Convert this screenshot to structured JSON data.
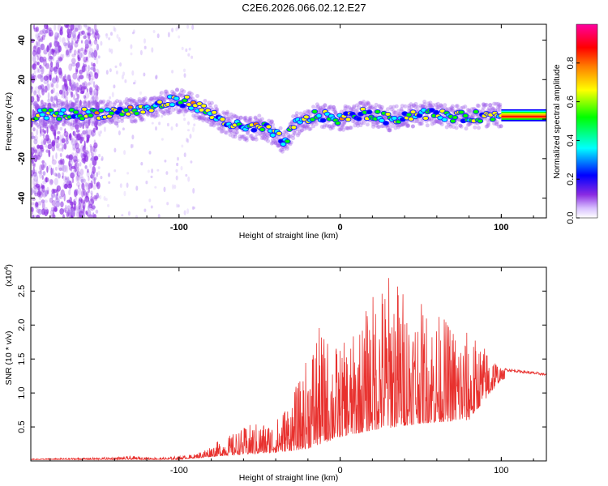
{
  "title": "C2E6.2026.066.02.12.E27",
  "chart_data": [
    {
      "type": "heatmap",
      "name": "spectrogram",
      "xlabel": "Height of straight line (km)",
      "ylabel": "Frequency (Hz)",
      "xlim": [
        -192,
        128
      ],
      "ylim": [
        -50,
        48
      ],
      "xticks": [
        -100,
        0,
        100
      ],
      "yticks": [
        -40,
        -20,
        0,
        20,
        40
      ],
      "grid": false,
      "colorbar": {
        "label": "Normalized spectral amplitude",
        "range": [
          0,
          1
        ],
        "ticks": [
          0.0,
          0.2,
          0.4,
          0.6,
          0.8
        ],
        "colormap": [
          "#ffffff",
          "#8a2be2",
          "#0000ff",
          "#00ffff",
          "#00ff00",
          "#ffff00",
          "#ff8000",
          "#ff0000",
          "#ff00a0"
        ]
      },
      "ridge": [
        {
          "x": -190,
          "y": 2
        },
        {
          "x": -150,
          "y": 3
        },
        {
          "x": -120,
          "y": 5
        },
        {
          "x": -105,
          "y": 9
        },
        {
          "x": -95,
          "y": 9
        },
        {
          "x": -85,
          "y": 5
        },
        {
          "x": -75,
          "y": 0
        },
        {
          "x": -60,
          "y": -5
        },
        {
          "x": -48,
          "y": -4
        },
        {
          "x": -40,
          "y": -8
        },
        {
          "x": -35,
          "y": -12
        },
        {
          "x": -28,
          "y": -3
        },
        {
          "x": -15,
          "y": 2
        },
        {
          "x": 0,
          "y": 0
        },
        {
          "x": 15,
          "y": 3
        },
        {
          "x": 30,
          "y": 0
        },
        {
          "x": 50,
          "y": 3
        },
        {
          "x": 75,
          "y": 1
        },
        {
          "x": 100,
          "y": 2
        }
      ],
      "noise_region": {
        "x_start": -192,
        "x_end": -150,
        "y_min": -50,
        "y_max": 48
      },
      "flat_band": {
        "x_start": 100,
        "x_end": 128,
        "y_center": 2,
        "half_width": 3
      }
    },
    {
      "type": "line",
      "name": "snr",
      "xlabel": "Height of straight line (km)",
      "ylabel": "SNR (10 * v/v)",
      "yscale_label": "(x10",
      "yscale_exponent": "4",
      "xlim": [
        -192,
        128
      ],
      "ylim": [
        0,
        2.85
      ],
      "xticks": [
        -100,
        0,
        100
      ],
      "yticks": [
        0.5,
        1.0,
        1.5,
        2.0,
        2.5
      ],
      "color": "#e8312e",
      "envelope": [
        {
          "x": -192,
          "y": 0.03
        },
        {
          "x": -150,
          "y": 0.05
        },
        {
          "x": -130,
          "y": 0.07
        },
        {
          "x": -110,
          "y": 0.05
        },
        {
          "x": -90,
          "y": 0.1
        },
        {
          "x": -75,
          "y": 0.3
        },
        {
          "x": -55,
          "y": 0.55
        },
        {
          "x": -40,
          "y": 0.6
        },
        {
          "x": -25,
          "y": 1.2
        },
        {
          "x": -15,
          "y": 2.0
        },
        {
          "x": 0,
          "y": 1.7
        },
        {
          "x": 10,
          "y": 1.9
        },
        {
          "x": 22,
          "y": 2.6
        },
        {
          "x": 32,
          "y": 2.85
        },
        {
          "x": 45,
          "y": 2.4
        },
        {
          "x": 60,
          "y": 2.2
        },
        {
          "x": 80,
          "y": 1.9
        },
        {
          "x": 95,
          "y": 1.6
        },
        {
          "x": 100,
          "y": 1.35
        },
        {
          "x": 128,
          "y": 1.27
        }
      ],
      "baseline": [
        {
          "x": -192,
          "y": 0.02
        },
        {
          "x": -100,
          "y": 0.02
        },
        {
          "x": -70,
          "y": 0.08
        },
        {
          "x": -40,
          "y": 0.12
        },
        {
          "x": -20,
          "y": 0.18
        },
        {
          "x": 0,
          "y": 0.35
        },
        {
          "x": 20,
          "y": 0.45
        },
        {
          "x": 50,
          "y": 0.55
        },
        {
          "x": 80,
          "y": 0.6
        },
        {
          "x": 100,
          "y": 1.2
        },
        {
          "x": 128,
          "y": 1.27
        }
      ]
    }
  ]
}
